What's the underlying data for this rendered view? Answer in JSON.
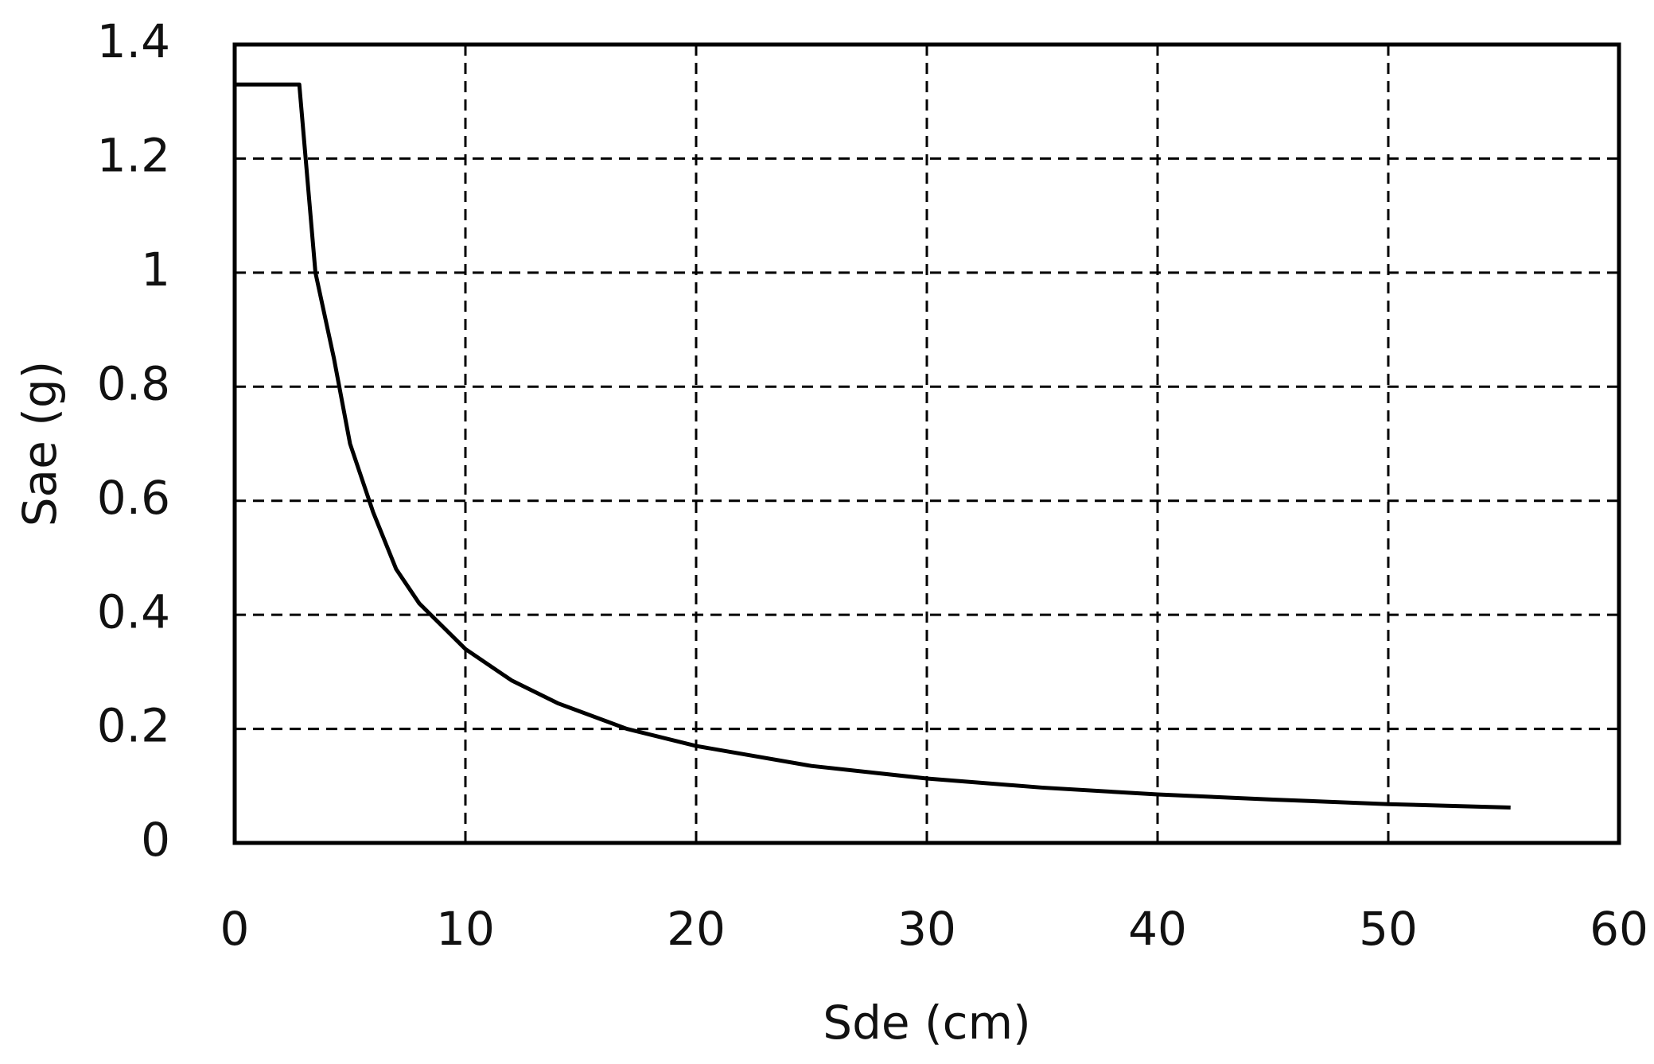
{
  "chart_data": {
    "type": "line",
    "xlabel": "Sde (cm)",
    "ylabel": "Sae (g)",
    "series": [
      {
        "name": "Sae",
        "color": "#000000",
        "x": [
          0,
          0,
          2.8,
          3.5,
          4.3,
          5,
          6,
          7,
          8,
          9,
          10,
          12,
          14,
          17,
          20,
          25,
          30,
          35,
          40,
          45,
          50,
          55.3
        ],
        "values": [
          0,
          1.33,
          1.33,
          1.0,
          0.85,
          0.7,
          0.58,
          0.48,
          0.42,
          0.38,
          0.34,
          0.285,
          0.245,
          0.2,
          0.17,
          0.135,
          0.113,
          0.097,
          0.085,
          0.076,
          0.068,
          0.062
        ]
      }
    ],
    "xlim": [
      0,
      60
    ],
    "xticks": [
      0,
      10,
      20,
      30,
      40,
      50,
      60
    ],
    "ylim": [
      0,
      1.4
    ],
    "yticks": [
      0,
      0.2,
      0.4,
      0.6,
      0.8,
      1,
      1.2,
      1.4
    ],
    "grid": true
  }
}
